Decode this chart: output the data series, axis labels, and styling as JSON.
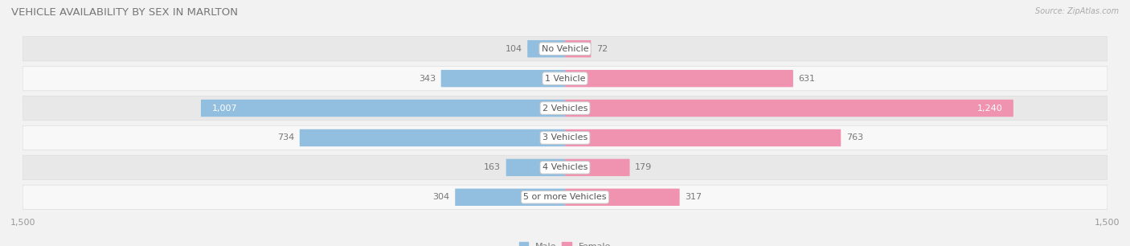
{
  "title": "VEHICLE AVAILABILITY BY SEX IN MARLTON",
  "source": "Source: ZipAtlas.com",
  "categories": [
    "No Vehicle",
    "1 Vehicle",
    "2 Vehicles",
    "3 Vehicles",
    "4 Vehicles",
    "5 or more Vehicles"
  ],
  "male_values": [
    104,
    343,
    1007,
    734,
    163,
    304
  ],
  "female_values": [
    72,
    631,
    1240,
    763,
    179,
    317
  ],
  "male_color": "#92bfe0",
  "female_color": "#f093b0",
  "bg_color": "#f2f2f2",
  "row_bg_color": "#ffffff",
  "row_alt_bg_color": "#eaeaea",
  "xlim": 1500,
  "legend_male": "Male",
  "legend_female": "Female",
  "title_fontsize": 9.5,
  "label_fontsize": 8,
  "axis_label_fontsize": 8,
  "category_fontsize": 8
}
